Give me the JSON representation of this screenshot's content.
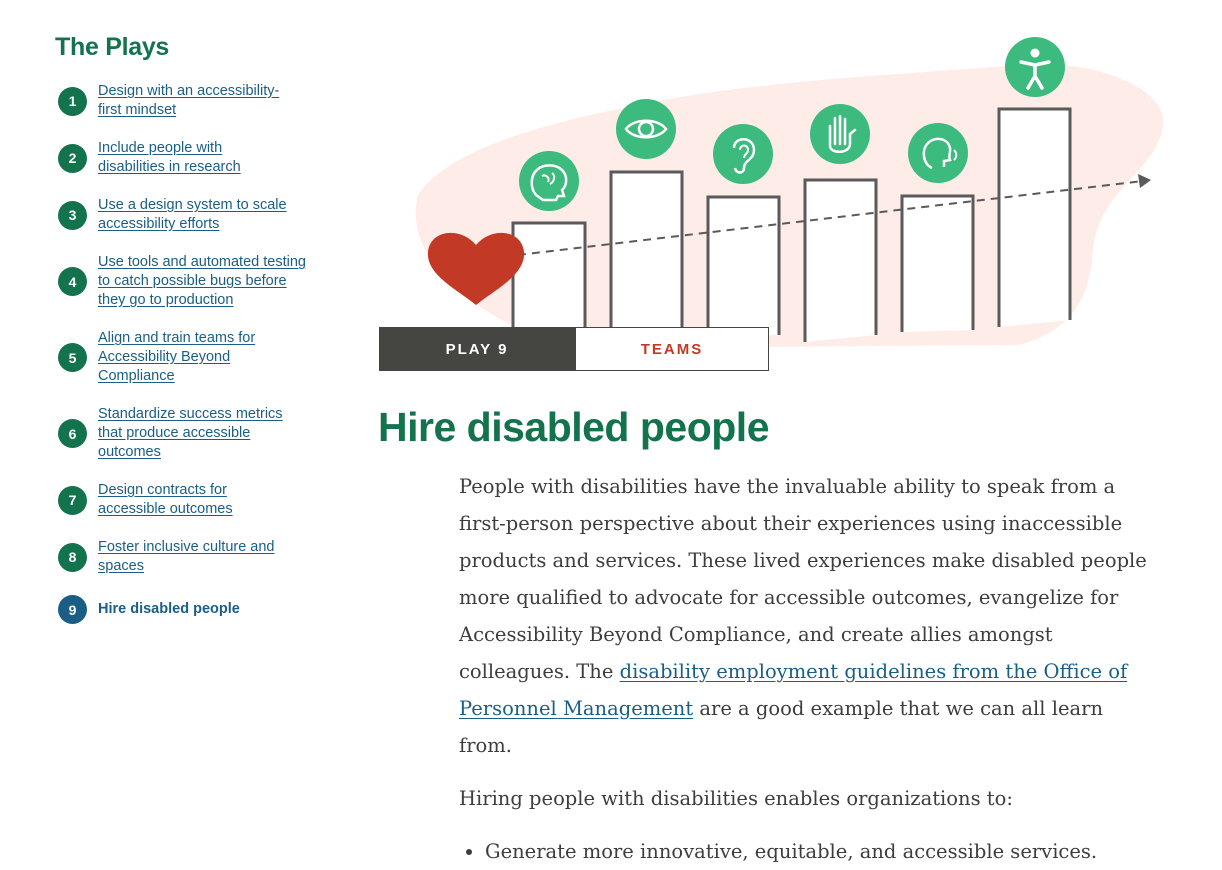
{
  "sidebar": {
    "title": "The Plays",
    "plays": [
      {
        "num": "1",
        "label": "Design with an accessibility-first mindset"
      },
      {
        "num": "2",
        "label": "Include people with disabilities in research"
      },
      {
        "num": "3",
        "label": "Use a design system to scale accessibility efforts"
      },
      {
        "num": "4",
        "label": "Use tools and automated testing to catch possible bugs before they go to production"
      },
      {
        "num": "5",
        "label": "Align and train teams for Accessibility Beyond Compliance"
      },
      {
        "num": "6",
        "label": "Standardize success metrics that produce accessible outcomes"
      },
      {
        "num": "7",
        "label": "Design contracts for accessible outcomes"
      },
      {
        "num": "8",
        "label": "Foster inclusive culture and spaces"
      },
      {
        "num": "9",
        "label": "Hire disabled people",
        "current": true
      }
    ]
  },
  "hero": {
    "play_tag": "PLAY 9",
    "category_tag": "TEAMS",
    "icons": [
      "brain-icon",
      "eye-icon",
      "ear-icon",
      "hand-icon",
      "speech-icon",
      "accessibility-person-icon"
    ],
    "colors": {
      "accent_green": "#3dba7e",
      "heart_red": "#c23a25",
      "blob_pink": "#fdece7",
      "bar_stroke": "#5a5a5a"
    }
  },
  "main": {
    "title": "Hire disabled people",
    "paragraph1_start": "People with disabilities have the invaluable ability to speak from a first-person perspective about their experiences using inaccessible products and services. These lived experiences make disabled people more qualified to advocate for accessible outcomes, evangelize for Accessibility Beyond Compliance, and create allies amongst colleagues. The ",
    "paragraph1_link": "disability employment guidelines from the Office of Personnel Management",
    "paragraph1_end": " are a good example that we can all learn from.",
    "paragraph2": "Hiring people with disabilities enables organizations to:",
    "bullets": [
      "Generate more innovative, equitable, and accessible services."
    ]
  },
  "colors": {
    "heading_green": "#13734d",
    "link_blue": "#1a5e85",
    "current_badge": "#1a5e85",
    "tag_dark": "#454542",
    "tag_red": "#c23a25"
  }
}
